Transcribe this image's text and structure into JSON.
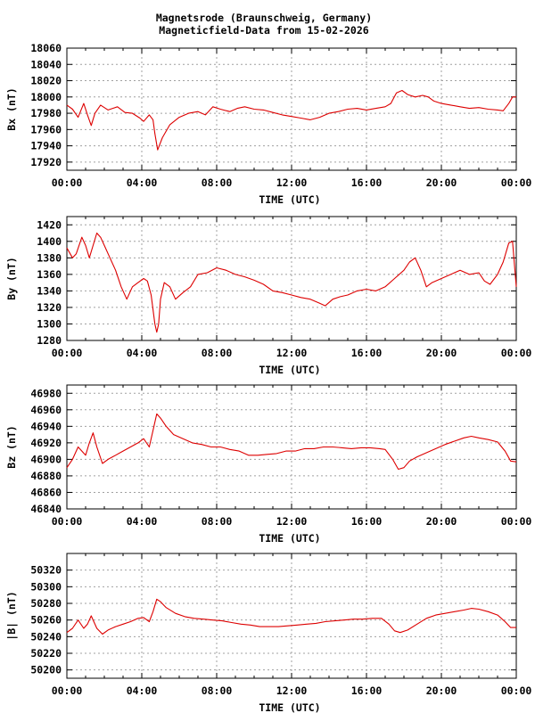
{
  "title": {
    "line1": "Magnetsrode (Braunschweig, Germany)",
    "line2": "Magneticfield-Data from 15-02-2026"
  },
  "colors": {
    "series": "#dd0000",
    "grid": "#a0a0a0",
    "axis": "#000000"
  },
  "chart_data": [
    {
      "type": "line",
      "ylabel": "Bx (nT)",
      "xlabel": "TIME (UTC)",
      "xlim": [
        0,
        24
      ],
      "xticks": [
        "00:00",
        "04:00",
        "08:00",
        "12:00",
        "16:00",
        "20:00",
        "00:00"
      ],
      "ylim": [
        17910,
        18060
      ],
      "yticks": [
        17920,
        17940,
        17960,
        17980,
        18000,
        18020,
        18040,
        18060
      ],
      "grid": true,
      "series": [
        {
          "points": [
            [
              0,
              17990
            ],
            [
              0.3,
              17985
            ],
            [
              0.6,
              17975
            ],
            [
              0.9,
              17992
            ],
            [
              1.1,
              17978
            ],
            [
              1.3,
              17965
            ],
            [
              1.5,
              17980
            ],
            [
              1.8,
              17990
            ],
            [
              2.2,
              17984
            ],
            [
              2.7,
              17988
            ],
            [
              3.1,
              17981
            ],
            [
              3.5,
              17980
            ],
            [
              3.9,
              17974
            ],
            [
              4.1,
              17970
            ],
            [
              4.4,
              17978
            ],
            [
              4.6,
              17972
            ],
            [
              4.7,
              17955
            ],
            [
              4.85,
              17935
            ],
            [
              5.1,
              17950
            ],
            [
              5.5,
              17966
            ],
            [
              6.0,
              17975
            ],
            [
              6.5,
              17980
            ],
            [
              7.0,
              17982
            ],
            [
              7.4,
              17978
            ],
            [
              7.8,
              17988
            ],
            [
              8.2,
              17985
            ],
            [
              8.7,
              17982
            ],
            [
              9.1,
              17986
            ],
            [
              9.5,
              17988
            ],
            [
              10.0,
              17985
            ],
            [
              10.5,
              17984
            ],
            [
              11.0,
              17981
            ],
            [
              11.5,
              17978
            ],
            [
              12.0,
              17976
            ],
            [
              12.5,
              17974
            ],
            [
              13.0,
              17972
            ],
            [
              13.5,
              17975
            ],
            [
              14.0,
              17980
            ],
            [
              14.5,
              17982
            ],
            [
              15.0,
              17985
            ],
            [
              15.5,
              17986
            ],
            [
              16.0,
              17984
            ],
            [
              16.5,
              17986
            ],
            [
              17.0,
              17988
            ],
            [
              17.3,
              17992
            ],
            [
              17.6,
              18005
            ],
            [
              17.9,
              18008
            ],
            [
              18.2,
              18003
            ],
            [
              18.6,
              18000
            ],
            [
              19.0,
              18002
            ],
            [
              19.3,
              18000
            ],
            [
              19.6,
              17995
            ],
            [
              20.0,
              17992
            ],
            [
              20.5,
              17990
            ],
            [
              21.0,
              17988
            ],
            [
              21.5,
              17986
            ],
            [
              22.0,
              17987
            ],
            [
              22.5,
              17985
            ],
            [
              23.0,
              17984
            ],
            [
              23.3,
              17983
            ],
            [
              23.6,
              17992
            ],
            [
              23.8,
              18000
            ],
            [
              24.0,
              18000
            ]
          ]
        }
      ]
    },
    {
      "type": "line",
      "ylabel": "By (nT)",
      "xlabel": "TIME (UTC)",
      "xlim": [
        0,
        24
      ],
      "xticks": [
        "00:00",
        "04:00",
        "08:00",
        "12:00",
        "16:00",
        "20:00",
        "00:00"
      ],
      "ylim": [
        1280,
        1430
      ],
      "yticks": [
        1280,
        1300,
        1320,
        1340,
        1360,
        1380,
        1400,
        1420
      ],
      "grid": true,
      "series": [
        {
          "points": [
            [
              0,
              1392
            ],
            [
              0.3,
              1380
            ],
            [
              0.5,
              1385
            ],
            [
              0.8,
              1405
            ],
            [
              1.0,
              1395
            ],
            [
              1.2,
              1380
            ],
            [
              1.4,
              1395
            ],
            [
              1.6,
              1410
            ],
            [
              1.8,
              1405
            ],
            [
              2.0,
              1395
            ],
            [
              2.3,
              1380
            ],
            [
              2.6,
              1365
            ],
            [
              2.9,
              1345
            ],
            [
              3.2,
              1330
            ],
            [
              3.5,
              1345
            ],
            [
              3.8,
              1350
            ],
            [
              4.1,
              1355
            ],
            [
              4.3,
              1352
            ],
            [
              4.5,
              1335
            ],
            [
              4.7,
              1300
            ],
            [
              4.8,
              1290
            ],
            [
              4.9,
              1300
            ],
            [
              5.0,
              1330
            ],
            [
              5.2,
              1350
            ],
            [
              5.5,
              1345
            ],
            [
              5.8,
              1330
            ],
            [
              6.2,
              1338
            ],
            [
              6.6,
              1345
            ],
            [
              7.0,
              1360
            ],
            [
              7.5,
              1362
            ],
            [
              8.0,
              1368
            ],
            [
              8.5,
              1365
            ],
            [
              9.0,
              1360
            ],
            [
              9.5,
              1357
            ],
            [
              10.0,
              1353
            ],
            [
              10.5,
              1348
            ],
            [
              11.0,
              1340
            ],
            [
              11.5,
              1338
            ],
            [
              12.0,
              1335
            ],
            [
              12.5,
              1332
            ],
            [
              13.0,
              1330
            ],
            [
              13.5,
              1325
            ],
            [
              13.8,
              1322
            ],
            [
              14.2,
              1330
            ],
            [
              14.6,
              1333
            ],
            [
              15.0,
              1335
            ],
            [
              15.5,
              1340
            ],
            [
              16.0,
              1342
            ],
            [
              16.5,
              1340
            ],
            [
              17.0,
              1345
            ],
            [
              17.5,
              1355
            ],
            [
              18.0,
              1365
            ],
            [
              18.3,
              1375
            ],
            [
              18.6,
              1380
            ],
            [
              18.9,
              1365
            ],
            [
              19.2,
              1345
            ],
            [
              19.5,
              1350
            ],
            [
              20.0,
              1355
            ],
            [
              20.5,
              1360
            ],
            [
              21.0,
              1365
            ],
            [
              21.5,
              1360
            ],
            [
              22.0,
              1362
            ],
            [
              22.3,
              1352
            ],
            [
              22.6,
              1348
            ],
            [
              23.0,
              1360
            ],
            [
              23.3,
              1375
            ],
            [
              23.6,
              1398
            ],
            [
              23.8,
              1400
            ],
            [
              24.0,
              1345
            ]
          ]
        }
      ]
    },
    {
      "type": "line",
      "ylabel": "Bz (nT)",
      "xlabel": "TIME (UTC)",
      "xlim": [
        0,
        24
      ],
      "xticks": [
        "00:00",
        "04:00",
        "08:00",
        "12:00",
        "16:00",
        "20:00",
        "00:00"
      ],
      "ylim": [
        46840,
        46990
      ],
      "yticks": [
        46840,
        46860,
        46880,
        46900,
        46920,
        46940,
        46960,
        46980
      ],
      "grid": true,
      "series": [
        {
          "points": [
            [
              0,
              46890
            ],
            [
              0.3,
              46900
            ],
            [
              0.6,
              46915
            ],
            [
              0.8,
              46910
            ],
            [
              1.0,
              46905
            ],
            [
              1.2,
              46920
            ],
            [
              1.4,
              46932
            ],
            [
              1.6,
              46915
            ],
            [
              1.9,
              46895
            ],
            [
              2.2,
              46900
            ],
            [
              2.6,
              46905
            ],
            [
              3.0,
              46910
            ],
            [
              3.4,
              46915
            ],
            [
              3.8,
              46920
            ],
            [
              4.1,
              46925
            ],
            [
              4.4,
              46915
            ],
            [
              4.6,
              46935
            ],
            [
              4.8,
              46955
            ],
            [
              5.0,
              46950
            ],
            [
              5.3,
              46940
            ],
            [
              5.7,
              46930
            ],
            [
              6.2,
              46925
            ],
            [
              6.7,
              46920
            ],
            [
              7.2,
              46918
            ],
            [
              7.7,
              46915
            ],
            [
              8.2,
              46915
            ],
            [
              8.7,
              46912
            ],
            [
              9.2,
              46910
            ],
            [
              9.7,
              46905
            ],
            [
              10.2,
              46905
            ],
            [
              10.7,
              46906
            ],
            [
              11.2,
              46907
            ],
            [
              11.7,
              46910
            ],
            [
              12.2,
              46910
            ],
            [
              12.7,
              46913
            ],
            [
              13.2,
              46913
            ],
            [
              13.7,
              46915
            ],
            [
              14.2,
              46915
            ],
            [
              14.7,
              46914
            ],
            [
              15.2,
              46913
            ],
            [
              15.7,
              46914
            ],
            [
              16.2,
              46914
            ],
            [
              16.7,
              46913
            ],
            [
              17.0,
              46912
            ],
            [
              17.4,
              46900
            ],
            [
              17.7,
              46888
            ],
            [
              18.0,
              46890
            ],
            [
              18.3,
              46898
            ],
            [
              18.7,
              46903
            ],
            [
              19.2,
              46908
            ],
            [
              19.7,
              46913
            ],
            [
              20.2,
              46918
            ],
            [
              20.7,
              46922
            ],
            [
              21.2,
              46926
            ],
            [
              21.6,
              46928
            ],
            [
              22.0,
              46926
            ],
            [
              22.5,
              46924
            ],
            [
              23.0,
              46921
            ],
            [
              23.4,
              46910
            ],
            [
              23.7,
              46898
            ],
            [
              24.0,
              46897
            ]
          ]
        }
      ]
    },
    {
      "type": "line",
      "ylabel": "|B| (nT)",
      "xlabel": "TIME (UTC)",
      "xlim": [
        0,
        24
      ],
      "xticks": [
        "00:00",
        "04:00",
        "08:00",
        "12:00",
        "16:00",
        "20:00",
        "00:00"
      ],
      "ylim": [
        50190,
        50340
      ],
      "yticks": [
        50200,
        50220,
        50240,
        50260,
        50280,
        50300,
        50320
      ],
      "grid": true,
      "series": [
        {
          "points": [
            [
              0,
              50245
            ],
            [
              0.3,
              50250
            ],
            [
              0.6,
              50260
            ],
            [
              0.9,
              50250
            ],
            [
              1.1,
              50255
            ],
            [
              1.3,
              50265
            ],
            [
              1.6,
              50250
            ],
            [
              1.9,
              50243
            ],
            [
              2.2,
              50248
            ],
            [
              2.6,
              50252
            ],
            [
              3.0,
              50255
            ],
            [
              3.4,
              50258
            ],
            [
              3.8,
              50262
            ],
            [
              4.1,
              50263
            ],
            [
              4.4,
              50258
            ],
            [
              4.6,
              50270
            ],
            [
              4.8,
              50285
            ],
            [
              5.0,
              50282
            ],
            [
              5.3,
              50275
            ],
            [
              5.8,
              50268
            ],
            [
              6.3,
              50264
            ],
            [
              6.8,
              50262
            ],
            [
              7.3,
              50261
            ],
            [
              7.8,
              50260
            ],
            [
              8.3,
              50259
            ],
            [
              8.8,
              50257
            ],
            [
              9.3,
              50255
            ],
            [
              9.8,
              50254
            ],
            [
              10.3,
              50252
            ],
            [
              10.8,
              50252
            ],
            [
              11.3,
              50252
            ],
            [
              11.8,
              50253
            ],
            [
              12.3,
              50254
            ],
            [
              12.8,
              50255
            ],
            [
              13.3,
              50256
            ],
            [
              13.8,
              50258
            ],
            [
              14.3,
              50259
            ],
            [
              14.8,
              50260
            ],
            [
              15.3,
              50261
            ],
            [
              15.8,
              50261
            ],
            [
              16.3,
              50262
            ],
            [
              16.8,
              50262
            ],
            [
              17.2,
              50255
            ],
            [
              17.5,
              50247
            ],
            [
              17.8,
              50245
            ],
            [
              18.2,
              50248
            ],
            [
              18.7,
              50255
            ],
            [
              19.2,
              50262
            ],
            [
              19.7,
              50266
            ],
            [
              20.2,
              50268
            ],
            [
              20.7,
              50270
            ],
            [
              21.2,
              50272
            ],
            [
              21.6,
              50274
            ],
            [
              22.0,
              50273
            ],
            [
              22.5,
              50270
            ],
            [
              23.0,
              50266
            ],
            [
              23.4,
              50258
            ],
            [
              23.7,
              50251
            ],
            [
              24.0,
              50251
            ]
          ]
        }
      ]
    }
  ]
}
